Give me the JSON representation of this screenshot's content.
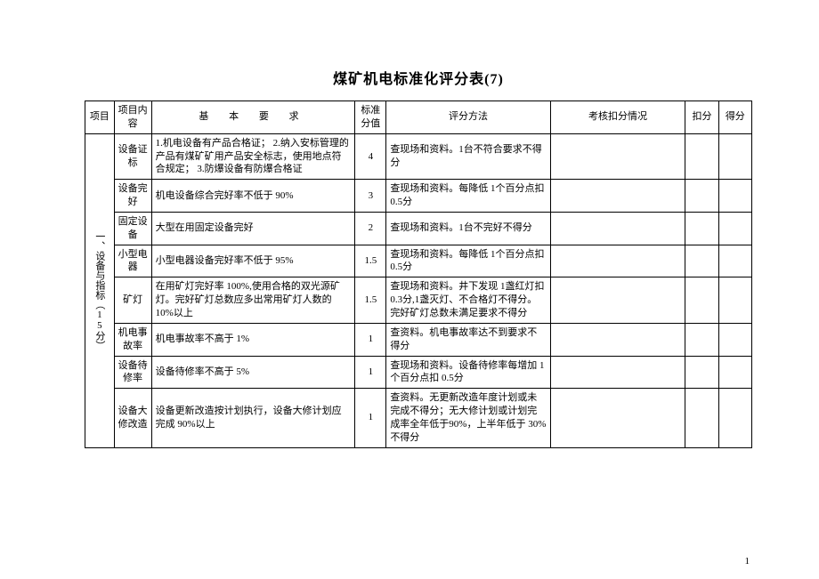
{
  "title": "煤矿机电标准化评分表(7)",
  "page_number": "1",
  "headers": {
    "category": "项目",
    "item": "项目内容",
    "requirement": "基 本 要 求",
    "score": "标准分值",
    "method": "评分方法",
    "deduction": "考核扣分情况",
    "kf": "扣分",
    "df": "得分"
  },
  "category_label": "一、设备与指标（15分）",
  "rows": [
    {
      "item": "设备证标",
      "requirement": "1.机电设备有产品合格证；\n2.纳入安标管理的产品有煤矿矿用产品安全标志，使用地点符合规定；\n3.防爆设备有防爆合格证",
      "score": "4",
      "method": "查现场和资料。1台不符合要求不得分"
    },
    {
      "item": "设备完好",
      "requirement": "机电设备综合完好率不低于 90%",
      "score": "3",
      "method": "查现场和资料。每降低 1个百分点扣 0.5分"
    },
    {
      "item": "固定设备",
      "requirement": "大型在用固定设备完好",
      "score": "2",
      "method": "查现场和资料。1台不完好不得分"
    },
    {
      "item": "小型电器",
      "requirement": "小型电器设备完好率不低于 95%",
      "score": "1.5",
      "method": "查现场和资料。每降低 1个百分点扣 0.5分"
    },
    {
      "item": "矿灯",
      "requirement": "在用矿灯完好率 100%,使用合格的双光源矿灯。完好矿灯总数应多出常用矿灯人数的 10%以上",
      "score": "1.5",
      "method": "查现场和资料。井下发现 1盏红灯扣 0.3分,1盏灭灯、不合格灯不得分。完好矿灯总数未满足要求不得分"
    },
    {
      "item": "机电事故率",
      "requirement": "机电事故率不高于 1%",
      "score": "1",
      "method": "查资料。机电事故率达不到要求不得分"
    },
    {
      "item": "设备待修率",
      "requirement": "设备待修率不高于 5%",
      "score": "1",
      "method": "查现场和资料。设备待修率每增加 1个百分点扣 0.5分"
    },
    {
      "item": "设备大修改造",
      "requirement": "设备更新改造按计划执行，设备大修计划应完成 90%以上",
      "score": "1",
      "method": "查资料。无更新改造年度计划或未完成不得分；无大修计划或计划完成率全年低于90%，上半年低于 30%不得分"
    }
  ]
}
